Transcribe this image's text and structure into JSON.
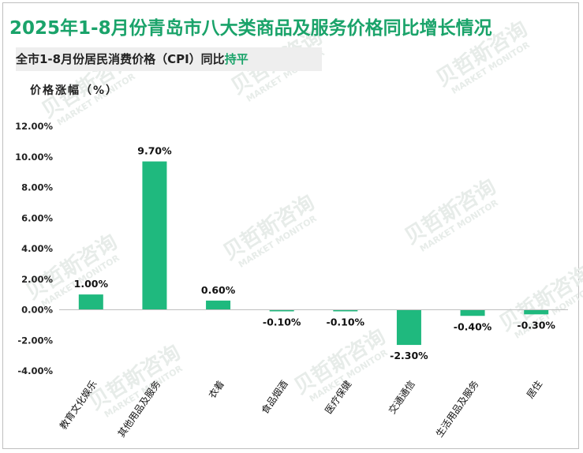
{
  "title": "2025年1-8月份青岛市八大类商品及服务价格同比增长情况",
  "subtitle": {
    "prefix": "全市1-8月份居民消费价格（CPI）同比",
    "highlight": "持平"
  },
  "ylabel": "价格涨幅（%）",
  "colors": {
    "bar": "#1fb97e",
    "title": "#1aa36a",
    "axis": "#bfbfbf"
  },
  "watermark": {
    "cn": "贝哲斯咨询",
    "en": "MARKET MONITOR"
  },
  "chart_data": {
    "type": "bar",
    "categories": [
      "教育文化娱乐",
      "其他用品及服务",
      "衣着",
      "食品烟酒",
      "医疗保健",
      "交通通信",
      "生活用品及服务",
      "居住"
    ],
    "values": [
      1.0,
      9.7,
      0.6,
      -0.1,
      -0.1,
      -2.3,
      -0.4,
      -0.3
    ],
    "value_labels": [
      "1.00%",
      "9.70%",
      "0.60%",
      "-0.10%",
      "-0.10%",
      "-2.30%",
      "-0.40%",
      "-0.30%"
    ],
    "ylabel": "价格涨幅（%）",
    "ylim": [
      -4,
      12
    ],
    "yticks": [
      12,
      10,
      8,
      6,
      4,
      2,
      0,
      -2,
      -4
    ],
    "ytick_labels": [
      "12.00%",
      "10.00%",
      "8.00%",
      "6.00%",
      "4.00%",
      "2.00%",
      "0.00%",
      "-2.00%",
      "-4.00%"
    ],
    "grid": false,
    "legend": "none"
  }
}
